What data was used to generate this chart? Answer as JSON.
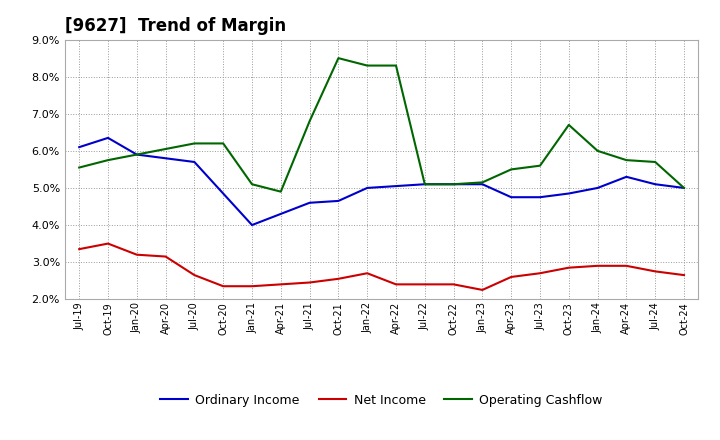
{
  "title": "[9627]  Trend of Margin",
  "x_labels": [
    "Jul-19",
    "Oct-19",
    "Jan-20",
    "Apr-20",
    "Jul-20",
    "Oct-20",
    "Jan-21",
    "Apr-21",
    "Jul-21",
    "Oct-21",
    "Jan-22",
    "Apr-22",
    "Jul-22",
    "Oct-22",
    "Jan-23",
    "Apr-23",
    "Jul-23",
    "Oct-23",
    "Jan-24",
    "Apr-24",
    "Jul-24",
    "Oct-24"
  ],
  "ordinary_income": [
    6.1,
    6.35,
    5.9,
    5.8,
    5.7,
    4.85,
    4.0,
    4.3,
    4.6,
    4.65,
    5.0,
    5.05,
    5.1,
    5.1,
    5.1,
    4.75,
    4.75,
    4.85,
    5.0,
    5.3,
    5.1,
    5.0
  ],
  "net_income": [
    3.35,
    3.5,
    3.2,
    3.15,
    2.65,
    2.35,
    2.35,
    2.4,
    2.45,
    2.55,
    2.7,
    2.4,
    2.4,
    2.4,
    2.25,
    2.6,
    2.7,
    2.85,
    2.9,
    2.9,
    2.75,
    2.65
  ],
  "operating_cashflow": [
    5.55,
    5.75,
    5.9,
    6.05,
    6.2,
    6.2,
    5.1,
    4.9,
    6.8,
    8.5,
    8.3,
    8.3,
    5.1,
    5.1,
    5.15,
    5.5,
    5.6,
    6.7,
    6.0,
    5.75,
    5.7,
    5.0
  ],
  "ylim": [
    2.0,
    9.0
  ],
  "yticks": [
    2.0,
    3.0,
    4.0,
    5.0,
    6.0,
    7.0,
    8.0,
    9.0
  ],
  "line_colors": {
    "ordinary_income": "#0000cc",
    "net_income": "#cc0000",
    "operating_cashflow": "#006600"
  },
  "legend_labels": [
    "Ordinary Income",
    "Net Income",
    "Operating Cashflow"
  ],
  "background_color": "#ffffff",
  "plot_bg_color": "#ffffff"
}
